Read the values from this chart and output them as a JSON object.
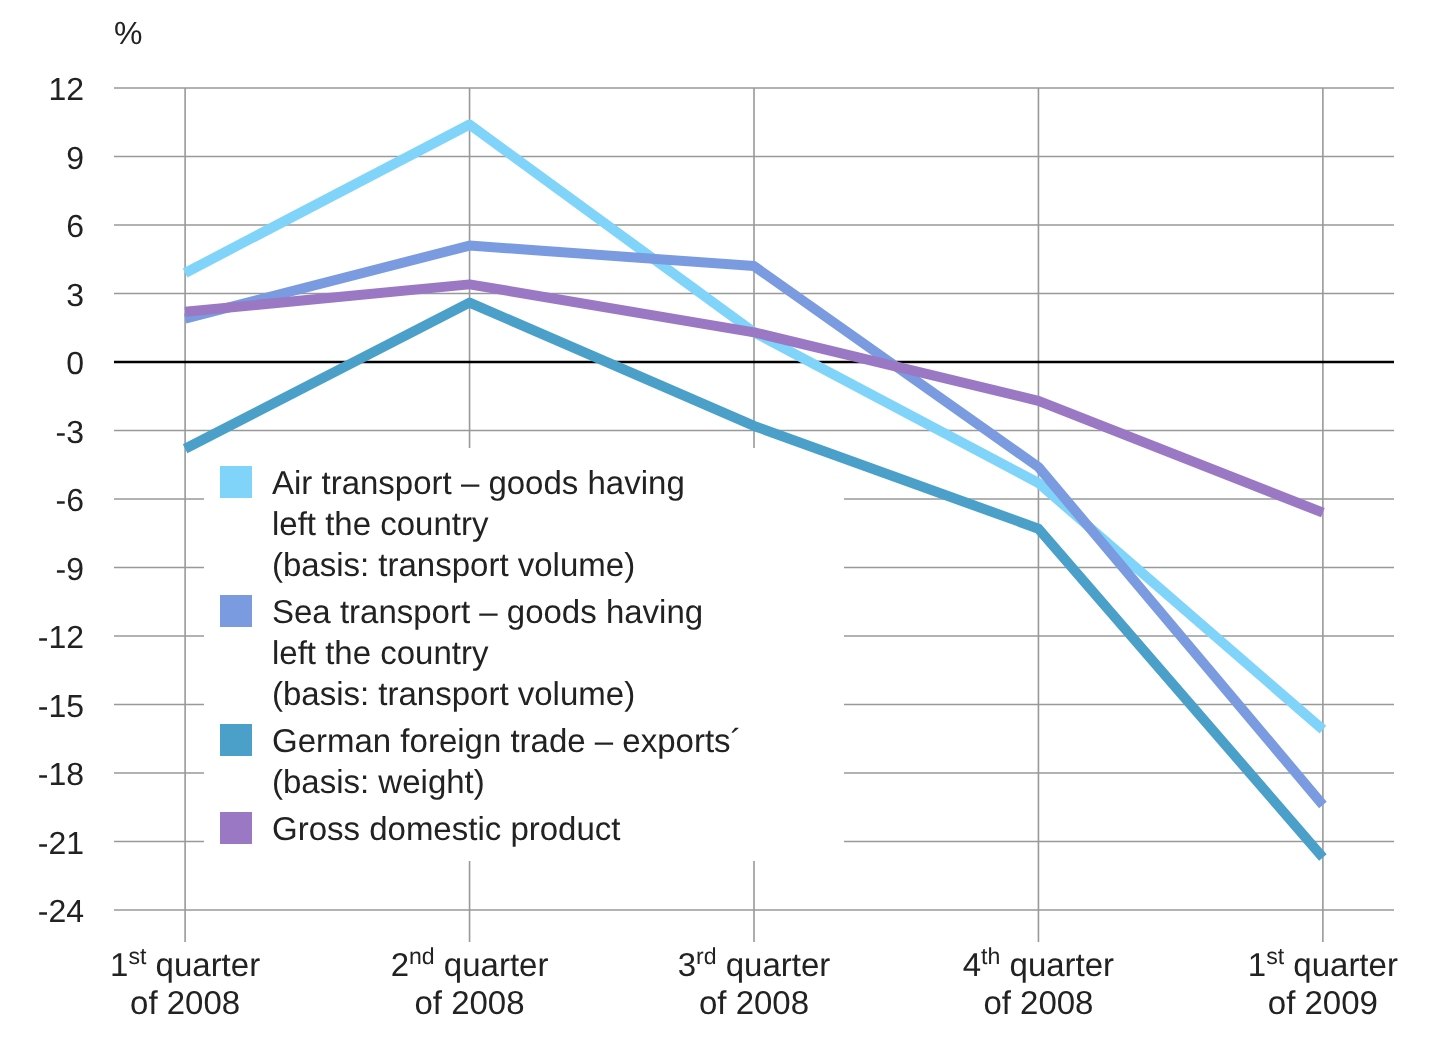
{
  "chart_data": {
    "type": "line",
    "ylabel": "%",
    "categories": [
      "1$^{st}$ quarter\nof 2008",
      "2$^{nd}$ quarter\nof 2008",
      "3$^{rd}$ quarter\nof 2008",
      "4$^{th}$ quarter\nof 2008",
      "1$^{st}$ quarter\nof 2009"
    ],
    "series": [
      {
        "name": "Air transport – goods having\nleft the country\n(basis: transport volume)",
        "color": "#80d4fa",
        "values": [
          3.9,
          10.4,
          1.3,
          -5.3,
          -16.1
        ]
      },
      {
        "name": "Sea transport – goods having\nleft the country\n(basis: transport volume)",
        "color": "#7b9be0",
        "values": [
          1.9,
          5.1,
          4.2,
          -4.6,
          -19.4
        ]
      },
      {
        "name": "German foreign trade – exports´\n(basis: weight)",
        "color": "#4aa0c8",
        "values": [
          -3.8,
          2.6,
          -2.8,
          -7.3,
          -21.7
        ]
      },
      {
        "name": "Gross domestic product",
        "color": "#9b78c4",
        "values": [
          2.2,
          3.4,
          1.3,
          -1.7,
          -6.6
        ]
      }
    ],
    "ylim": [
      -24,
      12
    ],
    "yticks": [
      -24,
      -21,
      -18,
      -15,
      -12,
      -9,
      -6,
      -3,
      0,
      3,
      6,
      9,
      12
    ],
    "grid": true,
    "legend": "bottom left",
    "marker": "none",
    "line_style": "solid",
    "ref_lines": [
      {
        "axis": "y",
        "value": 0,
        "color": "#000000"
      }
    ]
  }
}
